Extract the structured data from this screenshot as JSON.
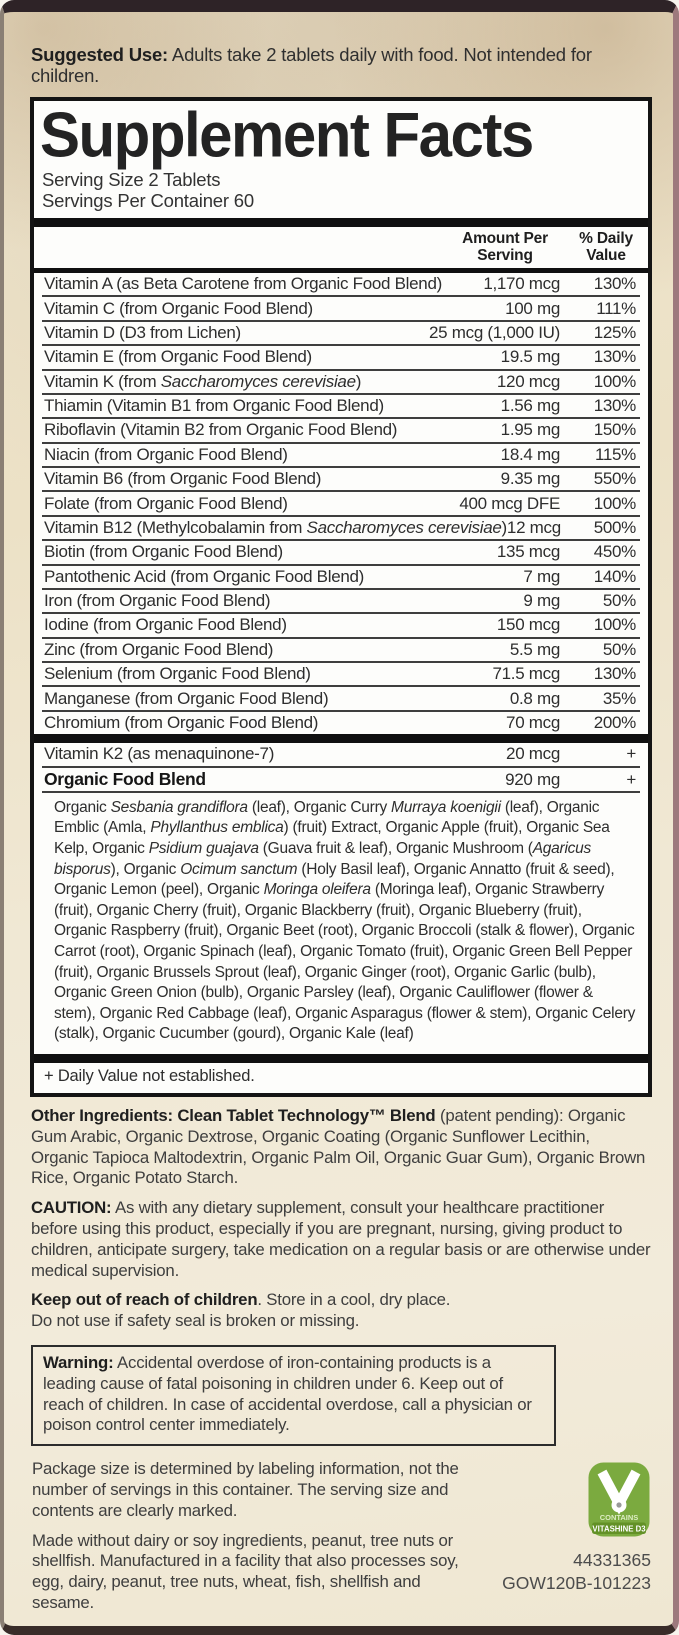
{
  "suggested_use": {
    "bold": "Suggested Use:",
    "text": " Adults take 2 tablets daily with food. Not intended for children."
  },
  "panel": {
    "title": "Supplement Facts",
    "serving_size": "Serving Size 2 Tablets",
    "servings_per_container": "Servings Per Container 60",
    "col_amount": "Amount Per Serving",
    "col_dv": "% Daily Value",
    "rows": [
      {
        "label": [
          {
            "t": "Vitamin A (as Beta Carotene from Organic Food Blend)"
          }
        ],
        "amount": "1,170 mcg",
        "dv": "130%"
      },
      {
        "label": [
          {
            "t": "Vitamin C (from Organic Food Blend)"
          }
        ],
        "amount": "100 mg",
        "dv": "111%"
      },
      {
        "label": [
          {
            "t": "Vitamin D (D3 from Lichen)"
          }
        ],
        "amount": "25 mcg (1,000 IU)",
        "dv": "125%"
      },
      {
        "label": [
          {
            "t": "Vitamin E (from Organic Food Blend)"
          }
        ],
        "amount": "19.5 mg",
        "dv": "130%"
      },
      {
        "label": [
          {
            "t": "Vitamin K (from "
          },
          {
            "t": "Saccharomyces cerevisiae",
            "i": true
          },
          {
            "t": ")"
          }
        ],
        "amount": "120 mcg",
        "dv": "100%"
      },
      {
        "label": [
          {
            "t": "Thiamin (Vitamin B1 from Organic Food Blend)"
          }
        ],
        "amount": "1.56 mg",
        "dv": "130%"
      },
      {
        "label": [
          {
            "t": "Riboflavin (Vitamin B2 from Organic Food Blend)"
          }
        ],
        "amount": "1.95 mg",
        "dv": "150%"
      },
      {
        "label": [
          {
            "t": "Niacin (from Organic Food Blend)"
          }
        ],
        "amount": "18.4 mg",
        "dv": "115%"
      },
      {
        "label": [
          {
            "t": "Vitamin B6 (from Organic Food Blend)"
          }
        ],
        "amount": "9.35 mg",
        "dv": "550%"
      },
      {
        "label": [
          {
            "t": "Folate (from Organic Food Blend)"
          }
        ],
        "amount": "400 mcg DFE",
        "dv": "100%"
      },
      {
        "label": [
          {
            "t": "Vitamin B12 (Methylcobalamin from "
          },
          {
            "t": "Saccharomyces cerevisiae",
            "i": true
          },
          {
            "t": ")"
          }
        ],
        "amount": "12 mcg",
        "dv": "500%"
      },
      {
        "label": [
          {
            "t": "Biotin (from Organic Food Blend)"
          }
        ],
        "amount": "135 mcg",
        "dv": "450%"
      },
      {
        "label": [
          {
            "t": "Pantothenic Acid (from Organic Food Blend)"
          }
        ],
        "amount": "7 mg",
        "dv": "140%"
      },
      {
        "label": [
          {
            "t": "Iron (from Organic Food Blend)"
          }
        ],
        "amount": "9 mg",
        "dv": "50%"
      },
      {
        "label": [
          {
            "t": "Iodine (from Organic Food Blend)"
          }
        ],
        "amount": "150 mcg",
        "dv": "100%"
      },
      {
        "label": [
          {
            "t": "Zinc (from Organic Food Blend)"
          }
        ],
        "amount": "5.5 mg",
        "dv": "50%"
      },
      {
        "label": [
          {
            "t": "Selenium (from Organic Food Blend)"
          }
        ],
        "amount": "71.5 mcg",
        "dv": "130%"
      },
      {
        "label": [
          {
            "t": "Manganese (from Organic Food Blend)"
          }
        ],
        "amount": "0.8 mg",
        "dv": "35%"
      },
      {
        "label": [
          {
            "t": "Chromium (from Organic Food Blend)"
          }
        ],
        "amount": "70 mcg",
        "dv": "200%"
      }
    ],
    "extra_rows": [
      {
        "label": [
          {
            "t": "Vitamin K2 (as menaquinone-7)"
          }
        ],
        "amount": "20 mcg",
        "dv": "+",
        "bold": false
      },
      {
        "label": [
          {
            "t": "Organic Food Blend"
          }
        ],
        "amount": "920 mg",
        "dv": "+",
        "bold": true
      }
    ],
    "blend": [
      {
        "t": "Organic "
      },
      {
        "t": "Sesbania grandiflora",
        "i": true
      },
      {
        "t": " (leaf), Organic Curry "
      },
      {
        "t": "Murraya koenigii",
        "i": true
      },
      {
        "t": " (leaf), Organic Emblic (Amla, "
      },
      {
        "t": "Phyllanthus emblica",
        "i": true
      },
      {
        "t": ") (fruit) Extract, Organic Apple (fruit), Organic Sea Kelp, Organic "
      },
      {
        "t": "Psidium guajava",
        "i": true
      },
      {
        "t": " (Guava fruit & leaf), Organic Mushroom ("
      },
      {
        "t": "Agaricus bisporus",
        "i": true
      },
      {
        "t": "), Organic "
      },
      {
        "t": "Ocimum sanctum",
        "i": true
      },
      {
        "t": " (Holy Basil leaf), Organic Annatto (fruit & seed), Organic Lemon (peel), Organic "
      },
      {
        "t": "Moringa oleifera",
        "i": true
      },
      {
        "t": " (Moringa leaf), Organic Strawberry (fruit), Organic Cherry (fruit), Organic Blackberry (fruit), Organic Blueberry (fruit), Organic Raspberry (fruit), Organic Beet (root), Organic Broccoli (stalk & flower), Organic Carrot (root), Organic Spinach (leaf), Organic Tomato (fruit), Organic Green Bell Pepper (fruit), Organic Brussels Sprout (leaf), Organic Ginger (root), Organic Garlic (bulb), Organic Green Onion (bulb), Organic Parsley (leaf), Organic Cauliflower (flower & stem), Organic Red Cabbage (leaf), Organic Asparagus (flower & stem), Organic Celery (stalk), Organic Cucumber (gourd), Organic Kale (leaf)"
      }
    ],
    "footnote": "+ Daily Value not established."
  },
  "other_ingredients": {
    "bold": "Other Ingredients: Clean Tablet Technology™ Blend",
    "text": " (patent pending): Organic Gum Arabic, Organic Dextrose, Organic Coating (Organic Sunflower Lecithin, Organic Tapioca Maltodextrin, Organic Palm Oil, Organic Guar Gum), Organic Brown Rice, Organic Potato Starch."
  },
  "caution": {
    "bold": "CAUTION:",
    "text": " As with any dietary supplement, consult your healthcare practitioner before using this product, especially if you are pregnant, nursing, giving product to children, anticipate surgery, take medication on a regular basis or are otherwise under medical supervision."
  },
  "keep_out": {
    "bold": "Keep out of reach of children",
    "text": ". Store in a cool, dry place."
  },
  "do_not_use": "Do not use if safety seal is broken or missing.",
  "warning": {
    "bold": "Warning:",
    "text": " Accidental overdose of iron-containing products is a leading cause of fatal poisoning in children under 6. Keep out of reach of children. In case of accidental overdose, call a physician or poison control center immediately."
  },
  "package_size": "Package size is determined by labeling information, not the number of servings in this container. The serving size and contents are clearly marked.",
  "made_without": "Made without dairy or soy ingredients, peanut, tree nuts or shellfish. Manufactured in a facility that also processes soy, egg, dairy, peanut, tree nuts, wheat, fish, shellfish and sesame.",
  "badge": {
    "contains": "CONTAINS",
    "vitashine": "VITASHINE D3",
    "green": "#7baa3f",
    "green_dark": "#639127"
  },
  "codes": {
    "line1": "44331365",
    "line2": "GOW120B-101223"
  }
}
